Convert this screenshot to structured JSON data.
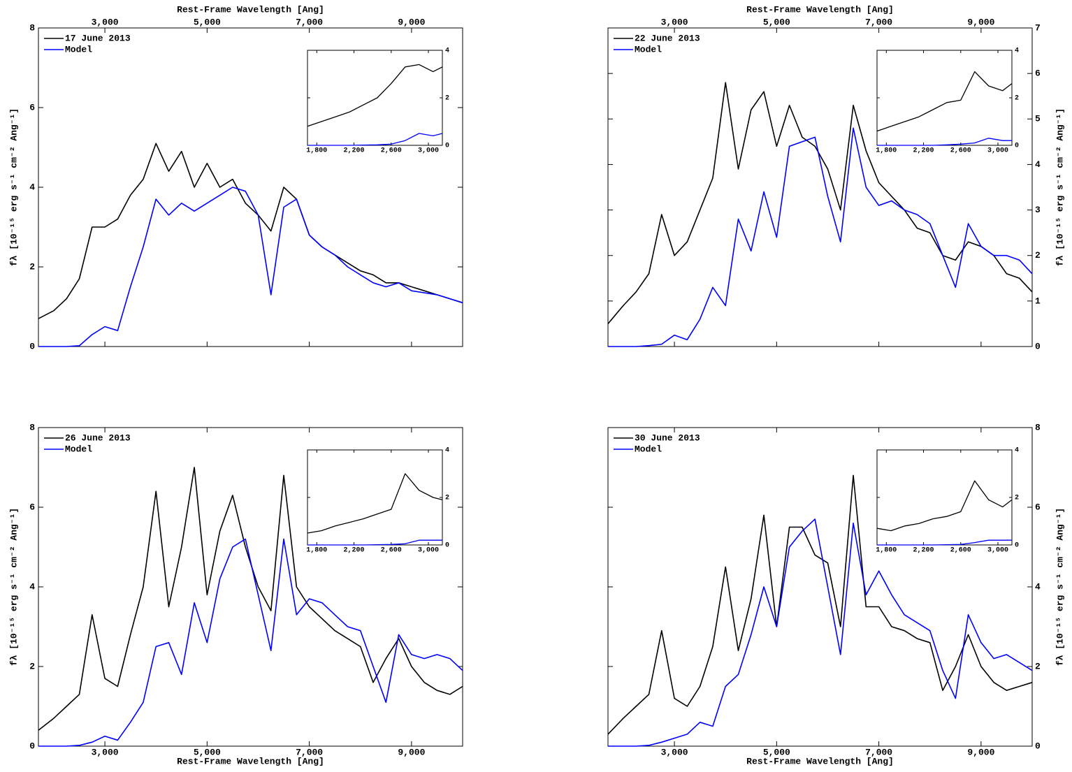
{
  "chart_data": [
    {
      "type": "line",
      "xlabel": "Rest-Frame Wavelength [Ang]",
      "ylabel": "fλ [10⁻¹⁵ erg s⁻¹ cm⁻² Ang⁻¹]",
      "xaxis_position": "top",
      "yaxis_position": "left",
      "legend": "upper left",
      "xlim": [
        1700,
        10000
      ],
      "ylim": [
        0,
        8
      ],
      "xticks": [
        {
          "value": 3000,
          "label": "3,000"
        },
        {
          "value": 5000,
          "label": "5,000"
        },
        {
          "value": 7000,
          "label": "7,000"
        },
        {
          "value": 9000,
          "label": "9,000"
        }
      ],
      "yticks": [
        0,
        2,
        4,
        6,
        8
      ],
      "x": [
        1700,
        2000,
        2250,
        2500,
        2750,
        3000,
        3250,
        3500,
        3750,
        4000,
        4250,
        4500,
        4750,
        5000,
        5250,
        5500,
        5750,
        6000,
        6250,
        6500,
        6750,
        7000,
        7250,
        7500,
        7750,
        8000,
        8250,
        8500,
        8750,
        9000,
        9250,
        9500,
        9750,
        10000
      ],
      "series": [
        {
          "name": "17 June 2013",
          "color": "#000000",
          "values": [
            0.7,
            0.9,
            1.2,
            1.7,
            3.0,
            3.0,
            3.2,
            3.8,
            4.2,
            5.1,
            4.4,
            4.9,
            4.0,
            4.6,
            4.0,
            4.2,
            3.6,
            3.3,
            2.9,
            4.0,
            3.7,
            2.8,
            2.5,
            2.3,
            2.1,
            1.9,
            1.8,
            1.6,
            1.6,
            1.5,
            1.4,
            1.3,
            1.2,
            1.1
          ]
        },
        {
          "name": "Model",
          "color": "#0000ff",
          "values": [
            0,
            0,
            0,
            0.02,
            0.3,
            0.5,
            0.4,
            1.5,
            2.5,
            3.7,
            3.3,
            3.6,
            3.4,
            3.6,
            3.8,
            4.0,
            3.9,
            3.3,
            1.3,
            3.5,
            3.7,
            2.8,
            2.5,
            2.3,
            2.0,
            1.8,
            1.6,
            1.5,
            1.6,
            1.4,
            1.35,
            1.3,
            1.2,
            1.1
          ]
        }
      ],
      "inset": {
        "xlim": [
          1700,
          3150
        ],
        "ylim": [
          0,
          4
        ],
        "xticks": [
          {
            "value": 1800,
            "label": "1,800"
          },
          {
            "value": 2200,
            "label": "2,200"
          },
          {
            "value": 2600,
            "label": "2,600"
          },
          {
            "value": 3000,
            "label": "3,000"
          }
        ],
        "yticks": [
          0,
          2,
          4
        ],
        "x": [
          1700,
          1850,
          2000,
          2150,
          2300,
          2450,
          2600,
          2750,
          2900,
          3050,
          3150
        ],
        "series": [
          {
            "color": "#000000",
            "values": [
              0.8,
              1.0,
              1.2,
              1.4,
              1.7,
              2.0,
              2.6,
              3.3,
              3.4,
              3.1,
              3.3
            ]
          },
          {
            "color": "#0000ff",
            "values": [
              0,
              0,
              0,
              0,
              0.01,
              0.02,
              0.05,
              0.2,
              0.5,
              0.4,
              0.5
            ]
          }
        ]
      }
    },
    {
      "type": "line",
      "xlabel": "Rest-Frame Wavelength [Ang]",
      "ylabel": "fλ [10⁻¹⁵ erg s⁻¹ cm⁻² Ang⁻¹]",
      "xaxis_position": "top",
      "yaxis_position": "right",
      "legend": "upper left",
      "xlim": [
        1700,
        10000
      ],
      "ylim": [
        0,
        7
      ],
      "xticks": [
        {
          "value": 3000,
          "label": "3,000"
        },
        {
          "value": 5000,
          "label": "5,000"
        },
        {
          "value": 7000,
          "label": "7,000"
        },
        {
          "value": 9000,
          "label": "9,000"
        }
      ],
      "yticks": [
        0,
        1,
        2,
        3,
        4,
        5,
        6,
        7
      ],
      "x": [
        1700,
        2000,
        2250,
        2500,
        2750,
        3000,
        3250,
        3500,
        3750,
        4000,
        4250,
        4500,
        4750,
        5000,
        5250,
        5500,
        5750,
        6000,
        6250,
        6500,
        6750,
        7000,
        7250,
        7500,
        7750,
        8000,
        8250,
        8500,
        8750,
        9000,
        9250,
        9500,
        9750,
        10000
      ],
      "series": [
        {
          "name": "22 June 2013",
          "color": "#000000",
          "values": [
            0.5,
            0.9,
            1.2,
            1.6,
            2.9,
            2.0,
            2.3,
            3.0,
            3.7,
            5.8,
            3.9,
            5.2,
            5.6,
            4.4,
            5.3,
            4.6,
            4.4,
            3.9,
            3.0,
            5.3,
            4.3,
            3.6,
            3.3,
            3.0,
            2.6,
            2.5,
            2.0,
            1.9,
            2.3,
            2.2,
            2.0,
            1.6,
            1.5,
            1.2
          ]
        },
        {
          "name": "Model",
          "color": "#0000ff",
          "values": [
            0,
            0,
            0,
            0.02,
            0.05,
            0.25,
            0.15,
            0.6,
            1.3,
            0.9,
            2.8,
            2.1,
            3.4,
            2.4,
            4.4,
            4.5,
            4.6,
            3.3,
            2.3,
            4.8,
            3.5,
            3.1,
            3.2,
            3.0,
            2.9,
            2.7,
            2.0,
            1.3,
            2.7,
            2.2,
            2.0,
            2.0,
            1.9,
            1.6
          ]
        }
      ],
      "inset": {
        "xlim": [
          1700,
          3150
        ],
        "ylim": [
          0,
          4
        ],
        "xticks": [
          {
            "value": 1800,
            "label": "1,800"
          },
          {
            "value": 2200,
            "label": "2,200"
          },
          {
            "value": 2600,
            "label": "2,600"
          },
          {
            "value": 3000,
            "label": "3,000"
          }
        ],
        "yticks": [
          0,
          2,
          4
        ],
        "x": [
          1700,
          1850,
          2000,
          2150,
          2300,
          2450,
          2600,
          2750,
          2900,
          3050,
          3150
        ],
        "series": [
          {
            "color": "#000000",
            "values": [
              0.6,
              0.8,
              1.0,
              1.2,
              1.5,
              1.8,
              1.9,
              3.1,
              2.5,
              2.3,
              2.6
            ]
          },
          {
            "color": "#0000ff",
            "values": [
              0,
              0,
              0,
              0,
              0,
              0.02,
              0.05,
              0.1,
              0.3,
              0.2,
              0.2
            ]
          }
        ]
      }
    },
    {
      "type": "line",
      "xlabel": "Rest-Frame Wavelength [Ang]",
      "ylabel": "fλ [10⁻¹⁵ erg s⁻¹ cm⁻² Ang⁻¹]",
      "xaxis_position": "bottom",
      "yaxis_position": "left",
      "legend": "upper left",
      "xlim": [
        1700,
        10000
      ],
      "ylim": [
        0,
        8
      ],
      "xticks": [
        {
          "value": 3000,
          "label": "3,000"
        },
        {
          "value": 5000,
          "label": "5,000"
        },
        {
          "value": 7000,
          "label": "7,000"
        },
        {
          "value": 9000,
          "label": "9,000"
        }
      ],
      "yticks": [
        0,
        2,
        4,
        6,
        8
      ],
      "x": [
        1700,
        2000,
        2250,
        2500,
        2750,
        3000,
        3250,
        3500,
        3750,
        4000,
        4250,
        4500,
        4750,
        5000,
        5250,
        5500,
        5750,
        6000,
        6250,
        6500,
        6750,
        7000,
        7250,
        7500,
        7750,
        8000,
        8250,
        8500,
        8750,
        9000,
        9250,
        9500,
        9750,
        10000
      ],
      "series": [
        {
          "name": "26 June 2013",
          "color": "#000000",
          "values": [
            0.4,
            0.7,
            1.0,
            1.3,
            3.3,
            1.7,
            1.5,
            2.8,
            4.0,
            6.4,
            3.5,
            5.0,
            7.0,
            3.8,
            5.4,
            6.3,
            5.0,
            4.0,
            3.4,
            6.8,
            4.0,
            3.5,
            3.2,
            2.9,
            2.7,
            2.5,
            1.6,
            2.2,
            2.7,
            2.0,
            1.6,
            1.4,
            1.3,
            1.5
          ]
        },
        {
          "name": "Model",
          "color": "#0000ff",
          "values": [
            0,
            0,
            0,
            0.02,
            0.1,
            0.25,
            0.15,
            0.6,
            1.1,
            2.5,
            2.6,
            1.8,
            3.6,
            2.6,
            4.2,
            5.0,
            5.2,
            3.8,
            2.4,
            5.2,
            3.3,
            3.7,
            3.6,
            3.3,
            3.0,
            2.9,
            2.0,
            1.1,
            2.8,
            2.3,
            2.2,
            2.3,
            2.2,
            1.9
          ]
        }
      ],
      "inset": {
        "xlim": [
          1700,
          3150
        ],
        "ylim": [
          0,
          4
        ],
        "xticks": [
          {
            "value": 1800,
            "label": "1,800"
          },
          {
            "value": 2200,
            "label": "2,200"
          },
          {
            "value": 2600,
            "label": "2,600"
          },
          {
            "value": 3000,
            "label": "3,000"
          }
        ],
        "yticks": [
          0,
          2,
          4
        ],
        "x": [
          1700,
          1850,
          2000,
          2150,
          2300,
          2450,
          2600,
          2750,
          2900,
          3050,
          3150
        ],
        "series": [
          {
            "color": "#000000",
            "values": [
              0.5,
              0.6,
              0.8,
              0.95,
              1.1,
              1.3,
              1.5,
              3.0,
              2.3,
              2.0,
              1.9
            ]
          },
          {
            "color": "#0000ff",
            "values": [
              0,
              0,
              0,
              0,
              0,
              0.01,
              0.02,
              0.05,
              0.2,
              0.2,
              0.2
            ]
          }
        ]
      }
    },
    {
      "type": "line",
      "xlabel": "Rest-Frame Wavelength [Ang]",
      "ylabel": "fλ [10⁻¹⁵ erg s⁻¹ cm⁻² Ang⁻¹]",
      "xaxis_position": "bottom",
      "yaxis_position": "right",
      "legend": "upper left",
      "xlim": [
        1700,
        10000
      ],
      "ylim": [
        0,
        8
      ],
      "xticks": [
        {
          "value": 3000,
          "label": "3,000"
        },
        {
          "value": 5000,
          "label": "5,000"
        },
        {
          "value": 7000,
          "label": "7,000"
        },
        {
          "value": 9000,
          "label": "9,000"
        }
      ],
      "yticks": [
        0,
        2,
        4,
        6,
        8
      ],
      "x": [
        1700,
        2000,
        2250,
        2500,
        2750,
        3000,
        3250,
        3500,
        3750,
        4000,
        4250,
        4500,
        4750,
        5000,
        5250,
        5500,
        5750,
        6000,
        6250,
        6500,
        6750,
        7000,
        7250,
        7500,
        7750,
        8000,
        8250,
        8500,
        8750,
        9000,
        9250,
        9500,
        9750,
        10000
      ],
      "series": [
        {
          "name": "30 June 2013",
          "color": "#000000",
          "values": [
            0.3,
            0.7,
            1.0,
            1.3,
            2.9,
            1.2,
            1.0,
            1.5,
            2.5,
            4.5,
            2.4,
            3.7,
            5.8,
            3.0,
            5.5,
            5.5,
            4.8,
            4.6,
            3.0,
            6.8,
            3.5,
            3.5,
            3.0,
            2.9,
            2.7,
            2.6,
            1.4,
            2.0,
            2.8,
            2.0,
            1.6,
            1.4,
            1.5,
            1.6
          ]
        },
        {
          "name": "Model",
          "color": "#0000ff",
          "values": [
            0,
            0,
            0,
            0.02,
            0.1,
            0.2,
            0.3,
            0.6,
            0.5,
            1.5,
            1.8,
            2.8,
            4.0,
            3.0,
            5.0,
            5.4,
            5.7,
            4.0,
            2.3,
            5.6,
            3.8,
            4.4,
            3.8,
            3.3,
            3.1,
            2.9,
            1.9,
            1.2,
            3.3,
            2.6,
            2.2,
            2.3,
            2.1,
            1.9
          ]
        }
      ],
      "inset": {
        "xlim": [
          1700,
          3150
        ],
        "ylim": [
          0,
          4
        ],
        "xticks": [
          {
            "value": 1800,
            "label": "1,800"
          },
          {
            "value": 2200,
            "label": "2,200"
          },
          {
            "value": 2600,
            "label": "2,600"
          },
          {
            "value": 3000,
            "label": "3,000"
          }
        ],
        "yticks": [
          0,
          2,
          4
        ],
        "x": [
          1700,
          1850,
          2000,
          2150,
          2300,
          2450,
          2600,
          2750,
          2900,
          3050,
          3150
        ],
        "series": [
          {
            "color": "#000000",
            "values": [
              0.7,
              0.6,
              0.8,
              0.9,
              1.1,
              1.2,
              1.4,
              2.7,
              1.9,
              1.6,
              1.9
            ]
          },
          {
            "color": "#0000ff",
            "values": [
              0,
              0,
              0,
              0,
              0,
              0.01,
              0.02,
              0.1,
              0.2,
              0.2,
              0.2
            ]
          }
        ]
      }
    }
  ]
}
